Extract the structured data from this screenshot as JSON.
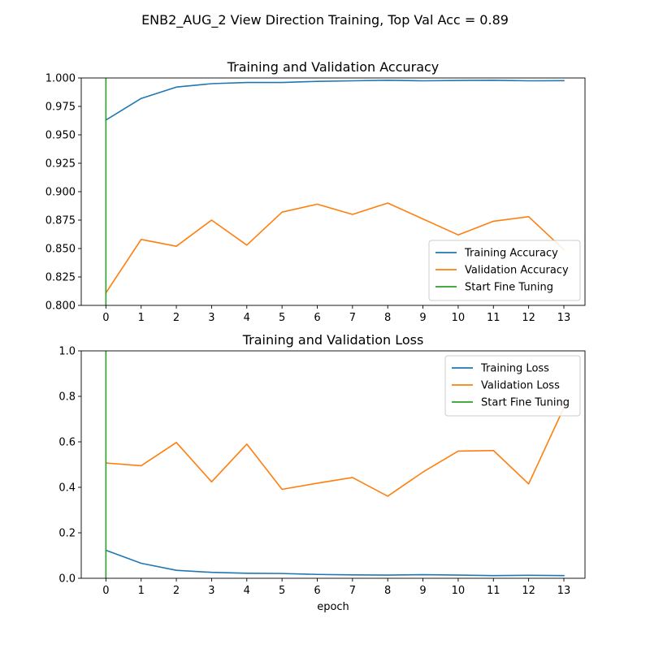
{
  "suptitle": "ENB2_AUG_2 View Direction Training, Top Val Acc = 0.89",
  "colors": {
    "training": "#1f77b4",
    "validation": "#ff7f0e",
    "fine_tuning": "#2ca02c"
  },
  "chart_data": [
    {
      "type": "line",
      "title": "Training and Validation Accuracy",
      "xlabel": "",
      "ylabel": "",
      "x": [
        0,
        1,
        2,
        3,
        4,
        5,
        6,
        7,
        8,
        9,
        10,
        11,
        12,
        13
      ],
      "xlim": [
        -0.7,
        13.6
      ],
      "ylim": [
        0.8,
        1.0
      ],
      "xticks": [
        "0",
        "1",
        "2",
        "3",
        "4",
        "5",
        "6",
        "7",
        "8",
        "9",
        "10",
        "11",
        "12",
        "13"
      ],
      "yticks": [
        0.8,
        0.825,
        0.85,
        0.875,
        0.9,
        0.925,
        0.95,
        0.975,
        1.0
      ],
      "ytick_labels": [
        "0.800",
        "0.825",
        "0.850",
        "0.875",
        "0.900",
        "0.925",
        "0.950",
        "0.975",
        "1.000"
      ],
      "grid": false,
      "legend_position": "lower-right",
      "series": [
        {
          "name": "Training Accuracy",
          "color": "#1f77b4",
          "values": [
            0.963,
            0.982,
            0.992,
            0.995,
            0.996,
            0.996,
            0.997,
            0.9975,
            0.998,
            0.9975,
            0.9978,
            0.998,
            0.9975,
            0.9976
          ]
        },
        {
          "name": "Validation Accuracy",
          "color": "#ff7f0e",
          "values": [
            0.811,
            0.858,
            0.852,
            0.875,
            0.853,
            0.882,
            0.889,
            0.88,
            0.89,
            0.876,
            0.862,
            0.874,
            0.878,
            0.849
          ]
        }
      ],
      "vline": {
        "name": "Start Fine Tuning",
        "color": "#2ca02c",
        "x": 0
      }
    },
    {
      "type": "line",
      "title": "Training and Validation Loss",
      "xlabel": "epoch",
      "ylabel": "",
      "x": [
        0,
        1,
        2,
        3,
        4,
        5,
        6,
        7,
        8,
        9,
        10,
        11,
        12,
        13
      ],
      "xlim": [
        -0.7,
        13.6
      ],
      "ylim": [
        0.0,
        1.0
      ],
      "xticks": [
        "0",
        "1",
        "2",
        "3",
        "4",
        "5",
        "6",
        "7",
        "8",
        "9",
        "10",
        "11",
        "12",
        "13"
      ],
      "yticks": [
        0.0,
        0.2,
        0.4,
        0.6,
        0.8,
        1.0
      ],
      "ytick_labels": [
        "0.0",
        "0.2",
        "0.4",
        "0.6",
        "0.8",
        "1.0"
      ],
      "grid": false,
      "legend_position": "upper-right",
      "series": [
        {
          "name": "Training Loss",
          "color": "#1f77b4",
          "values": [
            0.123,
            0.066,
            0.035,
            0.026,
            0.022,
            0.021,
            0.017,
            0.015,
            0.014,
            0.016,
            0.014,
            0.012,
            0.013,
            0.012
          ]
        },
        {
          "name": "Validation Loss",
          "color": "#ff7f0e",
          "values": [
            0.507,
            0.495,
            0.597,
            0.424,
            0.59,
            0.391,
            0.418,
            0.443,
            0.361,
            0.467,
            0.559,
            0.562,
            0.415,
            0.75
          ]
        }
      ],
      "vline": {
        "name": "Start Fine Tuning",
        "color": "#2ca02c",
        "x": 0
      }
    }
  ]
}
